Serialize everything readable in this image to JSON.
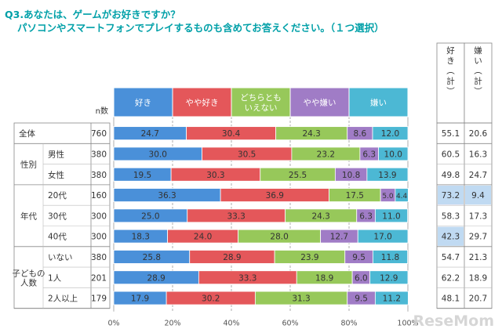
{
  "title_line1": "Q3.あなたは、ゲームがお好きですか？",
  "title_line2": "パソコンやスマートフォンでプレイするものも含めてお答えください。（１つ選択）",
  "n_header": "n数",
  "summary_headers": [
    "好き（計）",
    "嫌い（計）"
  ],
  "watermark": "ReseMom",
  "colors": {
    "好き": "#4a90d9",
    "やや好き": "#e4575a",
    "どちらともいえない": "#97c85a",
    "やや嫌い": "#a07cc6",
    "嫌い": "#4cb8d4",
    "highlight_pink": "#f5b4d4",
    "highlight_blue": "#c0daf2"
  },
  "chart_data": {
    "type": "bar",
    "orientation": "horizontal-stacked-100",
    "legend_position": "top",
    "series": [
      {
        "name": "好き",
        "values": [
          24.7,
          30.0,
          19.5,
          36.3,
          25.0,
          18.3,
          25.8,
          28.9,
          17.9
        ]
      },
      {
        "name": "やや好き",
        "values": [
          30.4,
          30.5,
          30.3,
          36.9,
          33.3,
          24.0,
          28.9,
          33.3,
          30.2
        ]
      },
      {
        "name": "どちらともいえない",
        "values": [
          24.3,
          23.2,
          25.5,
          17.5,
          24.3,
          28.0,
          23.9,
          18.9,
          31.3
        ]
      },
      {
        "name": "やや嫌い",
        "values": [
          8.6,
          6.3,
          10.8,
          5.0,
          6.3,
          12.7,
          9.5,
          6.0,
          9.5
        ]
      },
      {
        "name": "嫌い",
        "values": [
          12.0,
          10.0,
          13.9,
          4.4,
          11.0,
          17.0,
          11.8,
          12.9,
          11.2
        ]
      }
    ],
    "rows": [
      {
        "group": "全体",
        "label": "",
        "n": 760,
        "like_total": 55.1,
        "dislike_total": 20.6,
        "highlight": ""
      },
      {
        "group": "性別",
        "label": "男性",
        "n": 380,
        "like_total": 60.5,
        "dislike_total": 16.3,
        "highlight": ""
      },
      {
        "group": "性別",
        "label": "女性",
        "n": 380,
        "like_total": 49.8,
        "dislike_total": 24.7,
        "highlight": ""
      },
      {
        "group": "年代",
        "label": "20代",
        "n": 160,
        "like_total": 73.2,
        "dislike_total": 9.4,
        "highlight": "like_pink,dislike_blue"
      },
      {
        "group": "年代",
        "label": "30代",
        "n": 300,
        "like_total": 58.3,
        "dislike_total": 17.3,
        "highlight": ""
      },
      {
        "group": "年代",
        "label": "40代",
        "n": 300,
        "like_total": 42.3,
        "dislike_total": 29.7,
        "highlight": "like_blue"
      },
      {
        "group": "子どもの人数",
        "label": "いない",
        "n": 380,
        "like_total": 54.7,
        "dislike_total": 21.3,
        "highlight": ""
      },
      {
        "group": "子どもの人数",
        "label": "1人",
        "n": 201,
        "like_total": 62.2,
        "dislike_total": 18.9,
        "highlight": ""
      },
      {
        "group": "子どもの人数",
        "label": "2人以上",
        "n": 179,
        "like_total": 48.1,
        "dislike_total": 20.7,
        "highlight": ""
      }
    ],
    "groups": [
      {
        "name": "全体",
        "display": [
          "全体"
        ]
      },
      {
        "name": "性別",
        "display": [
          "性別"
        ]
      },
      {
        "name": "年代",
        "display": [
          "年代"
        ]
      },
      {
        "name": "子どもの人数",
        "display": [
          "子どもの",
          "人数"
        ]
      }
    ],
    "legend_display": [
      [
        "好き"
      ],
      [
        "やや好き"
      ],
      [
        "どちらとも",
        "いえない"
      ],
      [
        "やや嫌い"
      ],
      [
        "嫌い"
      ]
    ],
    "xticks": [
      "0%",
      "20%",
      "40%",
      "60%",
      "80%",
      "100%"
    ],
    "xlim": [
      0,
      100
    ],
    "grid": true
  }
}
